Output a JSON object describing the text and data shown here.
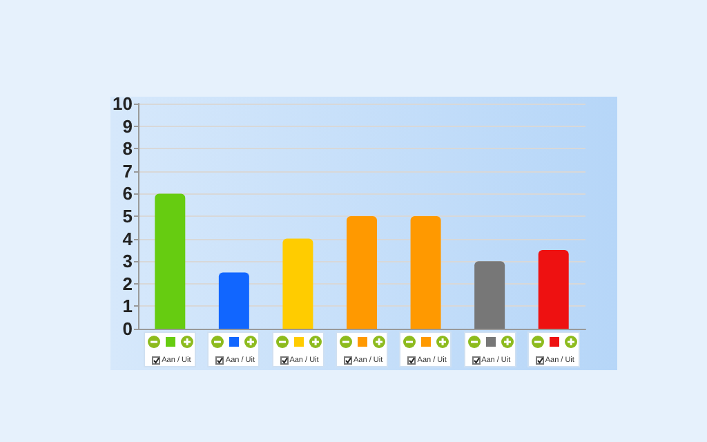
{
  "chart_data": {
    "type": "bar",
    "categories": [
      null,
      null,
      null,
      null,
      null,
      null,
      null
    ],
    "values": [
      6,
      2.5,
      4,
      5,
      5,
      3,
      3.5
    ],
    "colors": [
      "#66cc11",
      "#1166ff",
      "#ffcc00",
      "#ff9900",
      "#ff9900",
      "#777777",
      "#ee1111"
    ],
    "ylim": [
      0,
      10
    ],
    "yticks": [
      0,
      1,
      2,
      3,
      4,
      5,
      6,
      7,
      8,
      9,
      10
    ],
    "grid": "y",
    "tick_labels": "y",
    "annotations": [
      "Aan / Uit",
      "Aan / Uit",
      "Aan / Uit",
      "Aan / Uit",
      "Aan / Uit",
      "Aan / Uit",
      "Aan / Uit"
    ]
  }
}
